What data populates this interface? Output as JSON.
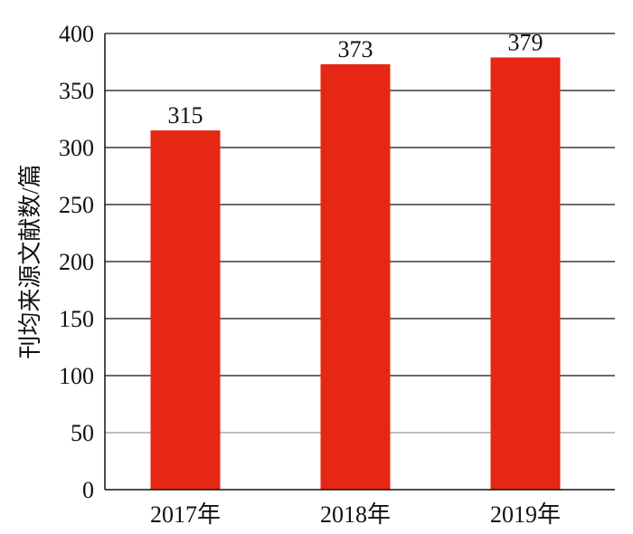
{
  "chart_data": {
    "type": "bar",
    "categories": [
      "2017年",
      "2018年",
      "2019年"
    ],
    "values": [
      315,
      373,
      379
    ],
    "data_labels": [
      "315",
      "373",
      "379"
    ],
    "title": "",
    "xlabel": "",
    "ylabel": "刊均来源文献数/篇",
    "ylim": [
      0,
      400
    ],
    "yticks": [
      0,
      50,
      100,
      150,
      200,
      250,
      300,
      350,
      400
    ],
    "grid": true,
    "legend": "none",
    "bar_color": "#e52713"
  }
}
